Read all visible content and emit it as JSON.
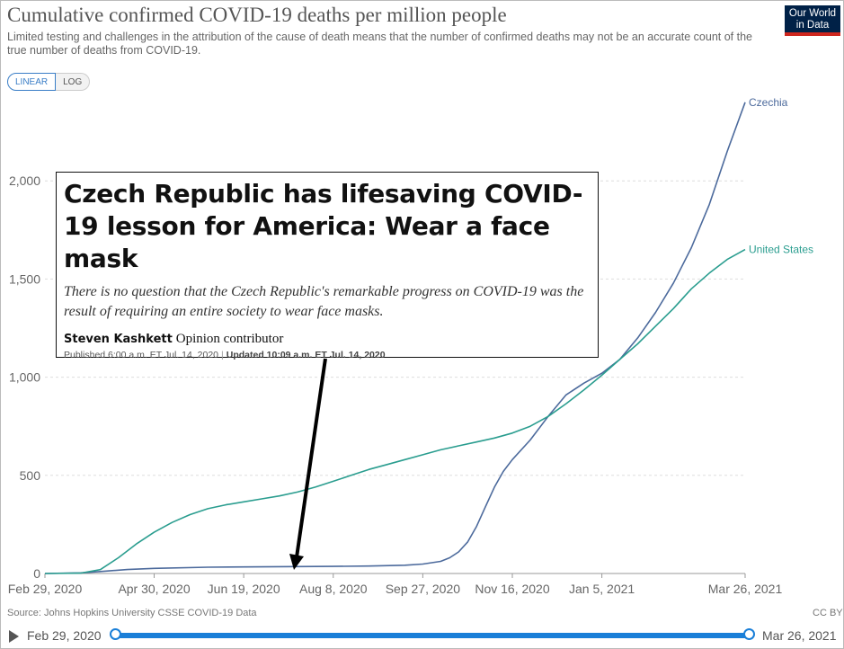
{
  "header": {
    "title": "Cumulative confirmed COVID-19 deaths per million people",
    "subtitle": "Limited testing and challenges in the attribution of the cause of death means that the number of confirmed deaths may not be an accurate count of the true number of deaths from COVID-19.",
    "logo_line1": "Our World",
    "logo_line2": "in Data"
  },
  "toggle": {
    "linear": "LINEAR",
    "log": "LOG"
  },
  "footer": {
    "source": "Source: Johns Hopkins University CSSE COVID-19 Data",
    "license": "CC BY"
  },
  "timeline": {
    "start": "Feb 29, 2020",
    "end": "Mar 26, 2021"
  },
  "article": {
    "headline": "Czech Republic has lifesaving COVID-19 lesson for America: Wear a face mask",
    "lede": "There is no question that the Czech Republic's remarkable progress on COVID-19 was the result of requiring an entire society to wear face masks.",
    "author": "Steven Kashkett",
    "role": "Opinion contributor",
    "published": "Published 6:00 a.m. ET Jul. 14, 2020",
    "updated": "Updated 10:09 a.m. ET Jul. 14, 2020"
  },
  "colors": {
    "czechia": "#4c6a9c",
    "united_states": "#2a9d8f",
    "grid": "#dddddd",
    "arrow": "#000000"
  },
  "chart_data": {
    "type": "line",
    "title": "Cumulative confirmed COVID-19 deaths per million people",
    "x_label": "",
    "y_label": "",
    "x_range": [
      0,
      391
    ],
    "ylim": [
      0,
      2500
    ],
    "y_ticks": [
      0,
      500,
      1000,
      1500,
      2000
    ],
    "y_tick_labels": [
      "0",
      "500",
      "1,000",
      "1,500",
      "2,000"
    ],
    "x_ticks": [
      0,
      61,
      111,
      161,
      211,
      261,
      311,
      391
    ],
    "x_tick_labels": [
      "Feb 29, 2020",
      "Apr 30, 2020",
      "Jun 19, 2020",
      "Aug 8, 2020",
      "Sep 27, 2020",
      "Nov 16, 2020",
      "Jan 5, 2021",
      "Mar 26, 2021"
    ],
    "grid": true,
    "series": [
      {
        "name": "Czechia",
        "x": [
          0,
          20,
          31,
          46,
          61,
          91,
          121,
          161,
          181,
          201,
          211,
          221,
          226,
          231,
          236,
          241,
          246,
          251,
          256,
          261,
          271,
          281,
          291,
          301,
          311,
          321,
          331,
          341,
          351,
          361,
          371,
          381,
          391
        ],
        "y": [
          0,
          3,
          10,
          20,
          26,
          32,
          34,
          36,
          38,
          42,
          48,
          62,
          80,
          110,
          160,
          240,
          340,
          440,
          520,
          580,
          680,
          800,
          910,
          970,
          1020,
          1090,
          1200,
          1330,
          1480,
          1660,
          1880,
          2150,
          2400
        ]
      },
      {
        "name": "United States",
        "x": [
          0,
          20,
          31,
          41,
          51,
          61,
          71,
          81,
          91,
          101,
          111,
          121,
          131,
          141,
          151,
          161,
          171,
          181,
          191,
          201,
          211,
          221,
          231,
          241,
          251,
          261,
          271,
          281,
          291,
          301,
          311,
          321,
          331,
          341,
          351,
          361,
          371,
          381,
          391
        ],
        "y": [
          0,
          2,
          20,
          80,
          150,
          210,
          260,
          300,
          330,
          350,
          365,
          380,
          395,
          415,
          440,
          470,
          500,
          530,
          555,
          580,
          605,
          630,
          650,
          670,
          690,
          715,
          750,
          800,
          865,
          935,
          1010,
          1090,
          1170,
          1260,
          1350,
          1450,
          1530,
          1600,
          1650
        ]
      }
    ],
    "annotations": [
      "Czechia",
      "United States"
    ]
  }
}
